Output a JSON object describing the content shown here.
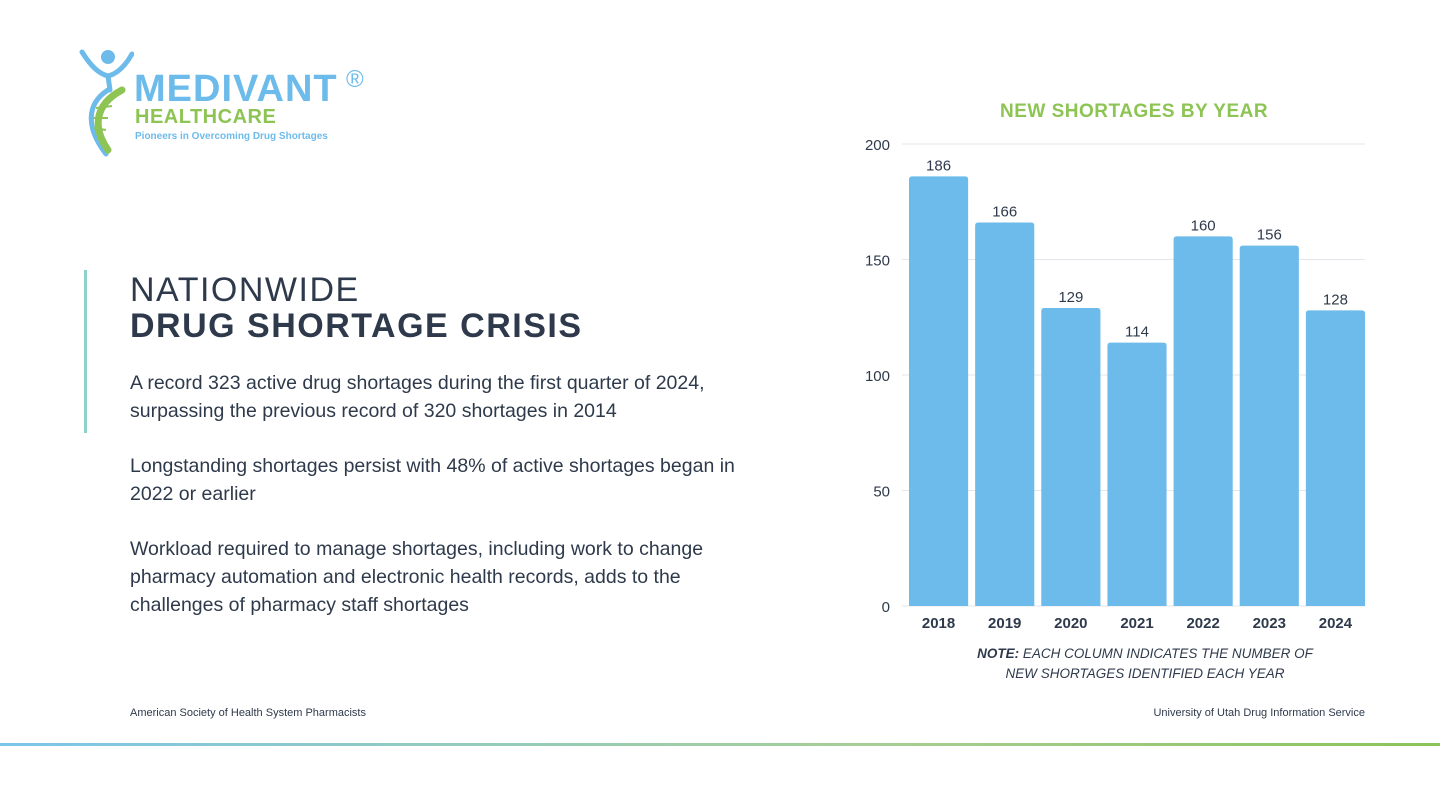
{
  "brand": {
    "name": "MEDIVANT",
    "registered_mark": "®",
    "subtitle": "HEALTHCARE",
    "tagline": "Pioneers in Overcoming Drug Shortages",
    "colors": {
      "blue": "#6dbbea",
      "green": "#8dc454"
    }
  },
  "slide": {
    "heading_line1": "NATIONWIDE",
    "heading_line2": "DRUG SHORTAGE CRISIS",
    "paragraphs": [
      "A record 323 active drug shortages during the first quarter of 2024, surpassing the previous record of 320 shortages in 2014",
      "Longstanding shortages persist with 48% of active shortages began in 2022 or earlier",
      "Workload required to manage shortages, including work to change pharmacy automation and electronic health records, adds to the challenges of pharmacy staff shortages"
    ],
    "text_color": "#2e3a4b",
    "accent_color": "#8fd0cd"
  },
  "footer": {
    "left_source": "American Society of Health System Pharmacists",
    "right_source": "University of Utah Drug Information Service"
  },
  "chart_data": {
    "type": "bar",
    "title": "NEW SHORTAGES BY YEAR",
    "categories": [
      "2018",
      "2019",
      "2020",
      "2021",
      "2022",
      "2023",
      "2024"
    ],
    "values": [
      186,
      166,
      129,
      114,
      160,
      156,
      128
    ],
    "ylim": [
      0,
      200
    ],
    "yticks": [
      0,
      50,
      100,
      150,
      200
    ],
    "grid": true,
    "data_labels": true,
    "bar_color": "#6dbbea",
    "title_color": "#8dc454",
    "note_label": "NOTE:",
    "note_line1": "EACH COLUMN INDICATES THE NUMBER OF",
    "note_line2": "NEW SHORTAGES IDENTIFIED EACH YEAR"
  }
}
